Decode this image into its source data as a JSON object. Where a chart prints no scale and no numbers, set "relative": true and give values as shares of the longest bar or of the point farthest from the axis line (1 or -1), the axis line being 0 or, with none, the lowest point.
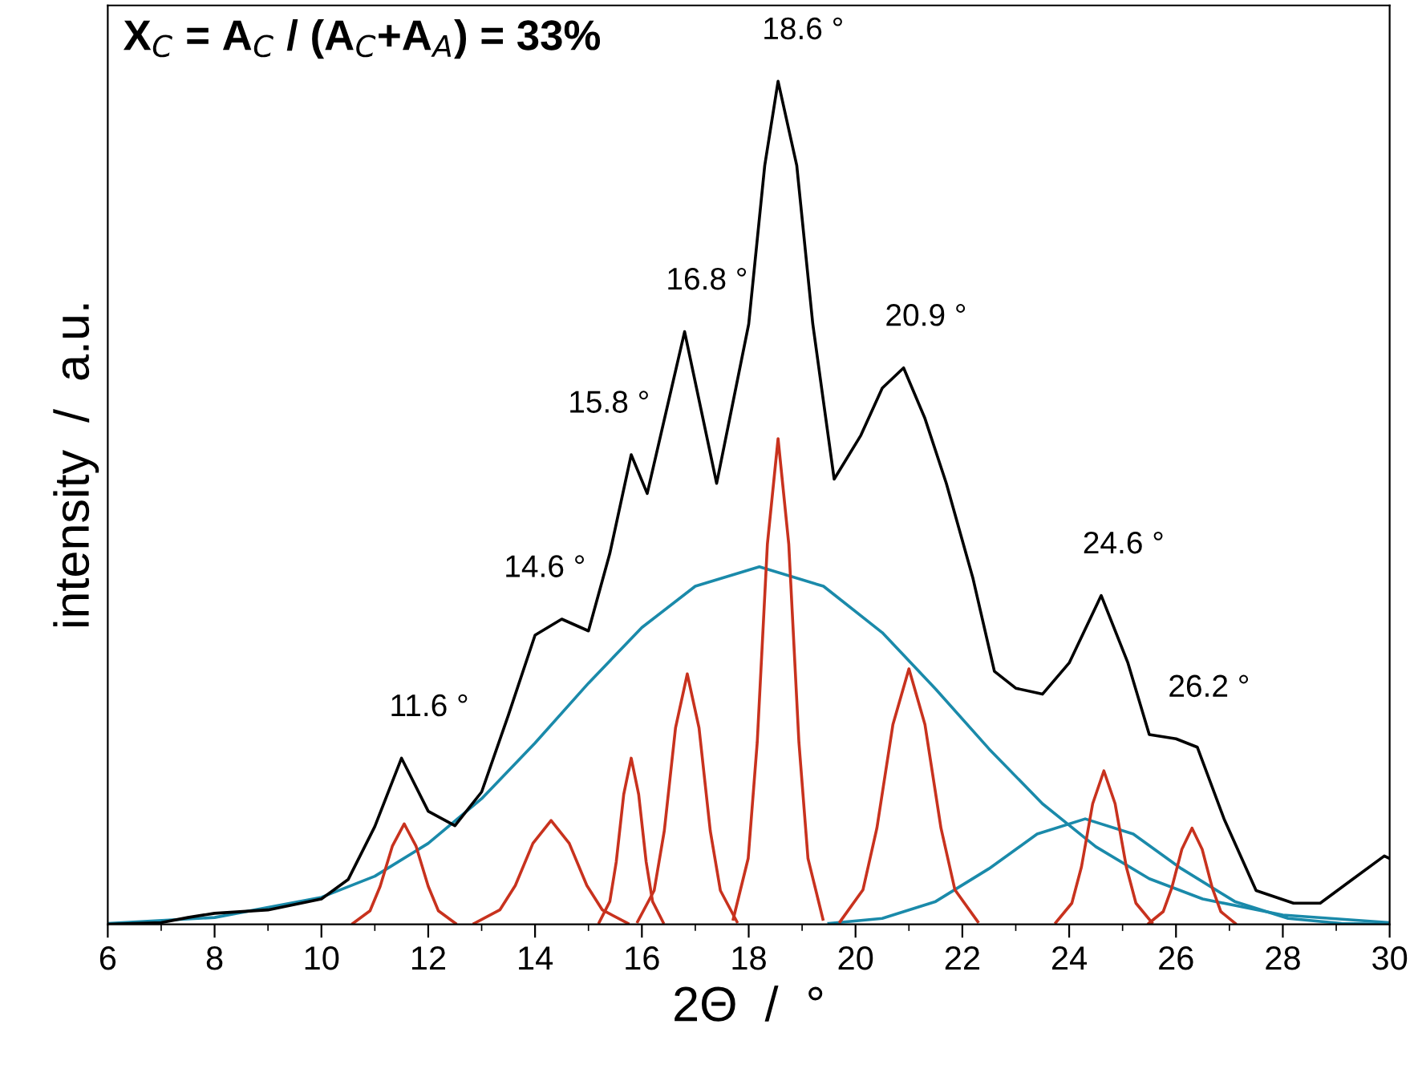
{
  "chart_data": {
    "type": "line",
    "relative": true,
    "xlabel": "2Θ  /  °",
    "ylabel": "intensity  /  a.u.",
    "xlim": [
      6,
      30
    ],
    "xticks": [
      6,
      8,
      10,
      12,
      14,
      16,
      18,
      20,
      22,
      24,
      26,
      28,
      30
    ],
    "grid": false,
    "legend": false,
    "marker": "none",
    "line_style": "solid",
    "annotations": [
      "X$_{C}$ = A$_{C}$ / (A$_{C}$+A$_{A}$) = 33%",
      {
        "text": "11.6 °",
        "x": 11.6,
        "y": 0.197
      },
      {
        "text": "14.6 °",
        "x": 14.6,
        "y": 0.362
      },
      {
        "text": "15.8 °",
        "x": 15.8,
        "y": 0.557
      },
      {
        "text": "16.8 °",
        "x": 16.8,
        "y": 0.703
      },
      {
        "text": "18.6 °",
        "x": 18.6,
        "y": 1.0
      },
      {
        "text": "20.9 °",
        "x": 20.9,
        "y": 0.66
      },
      {
        "text": "24.6 °",
        "x": 24.6,
        "y": 0.39
      },
      {
        "text": "26.2 °",
        "x": 26.2,
        "y": 0.22
      }
    ],
    "series": [
      {
        "color": "#1a8aaa",
        "x": [
          6,
          8,
          10,
          11,
          12,
          13,
          14,
          15,
          16,
          17,
          18.2,
          19.4,
          20.5,
          21.5,
          22.5,
          23.5,
          24.5,
          25.5,
          26.5,
          28,
          30
        ],
        "values": [
          0.001,
          0.008,
          0.032,
          0.057,
          0.096,
          0.149,
          0.215,
          0.286,
          0.352,
          0.401,
          0.424,
          0.401,
          0.346,
          0.279,
          0.208,
          0.143,
          0.092,
          0.054,
          0.03,
          0.011,
          0.002
        ]
      },
      {
        "color": "#1a8aaa",
        "x": [
          19.5,
          20.5,
          21.5,
          22.5,
          23.4,
          24.3,
          25.2,
          26.1,
          27.1,
          28.1,
          29.1,
          30
        ],
        "values": [
          0.001,
          0.007,
          0.027,
          0.066,
          0.107,
          0.125,
          0.107,
          0.066,
          0.027,
          0.007,
          0.001,
          0
        ]
      },
      {
        "color": "#c8321e",
        "x": [
          10.59,
          10.91,
          11.1,
          11.33,
          11.55,
          11.77,
          12.0,
          12.19,
          12.51
        ],
        "values": [
          0.001,
          0.016,
          0.045,
          0.093,
          0.119,
          0.093,
          0.045,
          0.016,
          0.001
        ]
      },
      {
        "color": "#c8321e",
        "x": [
          12.86,
          13.34,
          13.63,
          13.96,
          14.3,
          14.64,
          14.97,
          15.26,
          15.74
        ],
        "values": [
          0.001,
          0.017,
          0.046,
          0.096,
          0.123,
          0.096,
          0.046,
          0.017,
          0.001
        ]
      },
      {
        "color": "#c8321e",
        "x": [
          15.2,
          15.4,
          15.52,
          15.66,
          15.8,
          15.94,
          16.08,
          16.2,
          16.4
        ],
        "values": [
          0.002,
          0.027,
          0.074,
          0.154,
          0.197,
          0.154,
          0.074,
          0.027,
          0.002
        ]
      },
      {
        "color": "#c8321e",
        "x": [
          15.92,
          16.23,
          16.42,
          16.63,
          16.85,
          17.07,
          17.28,
          17.47,
          17.78
        ],
        "values": [
          0.003,
          0.04,
          0.111,
          0.233,
          0.297,
          0.233,
          0.111,
          0.04,
          0.003
        ]
      },
      {
        "color": "#c8321e",
        "x": [
          17.71,
          17.99,
          18.16,
          18.35,
          18.55,
          18.75,
          18.94,
          19.11,
          19.39
        ],
        "values": [
          0.006,
          0.078,
          0.216,
          0.451,
          0.576,
          0.451,
          0.216,
          0.078,
          0.006
        ]
      },
      {
        "color": "#c8321e",
        "x": [
          19.71,
          20.14,
          20.4,
          20.7,
          21.0,
          21.3,
          21.6,
          21.86,
          22.29
        ],
        "values": [
          0.003,
          0.041,
          0.114,
          0.237,
          0.303,
          0.237,
          0.114,
          0.041,
          0.003
        ]
      },
      {
        "color": "#c8321e",
        "x": [
          23.75,
          24.05,
          24.23,
          24.44,
          24.65,
          24.86,
          25.07,
          25.25,
          25.55
        ],
        "values": [
          0.002,
          0.025,
          0.068,
          0.143,
          0.182,
          0.143,
          0.068,
          0.025,
          0.002
        ]
      },
      {
        "color": "#c8321e",
        "x": [
          25.49,
          25.76,
          25.92,
          26.11,
          26.3,
          26.49,
          26.68,
          26.84,
          27.11
        ],
        "values": [
          0.001,
          0.015,
          0.043,
          0.089,
          0.114,
          0.089,
          0.043,
          0.015,
          0.001
        ]
      },
      {
        "color": "#000000",
        "x": [
          6,
          7,
          7.5,
          8,
          9,
          10,
          10.5,
          11,
          11.5,
          12,
          12.5,
          13,
          13.5,
          14,
          14.5,
          15,
          15.4,
          15.8,
          16.1,
          16.8,
          17.4,
          18,
          18.3,
          18.55,
          18.9,
          19.2,
          19.6,
          20.1,
          20.5,
          20.9,
          21.3,
          21.7,
          22.2,
          22.6,
          23.0,
          23.5,
          24.0,
          24.6,
          25.1,
          25.5,
          26.0,
          26.4,
          26.9,
          27.5,
          28.2,
          28.7,
          29.3,
          29.9,
          30
        ],
        "values": [
          0,
          0.002,
          0.008,
          0.013,
          0.017,
          0.03,
          0.053,
          0.116,
          0.197,
          0.134,
          0.117,
          0.157,
          0.248,
          0.343,
          0.362,
          0.348,
          0.44,
          0.557,
          0.511,
          0.703,
          0.523,
          0.712,
          0.9,
          1.0,
          0.9,
          0.712,
          0.528,
          0.58,
          0.636,
          0.66,
          0.6,
          0.523,
          0.41,
          0.3,
          0.28,
          0.273,
          0.31,
          0.39,
          0.31,
          0.225,
          0.22,
          0.21,
          0.125,
          0.04,
          0.025,
          0.025,
          0.053,
          0.081,
          0.078
        ]
      }
    ]
  }
}
